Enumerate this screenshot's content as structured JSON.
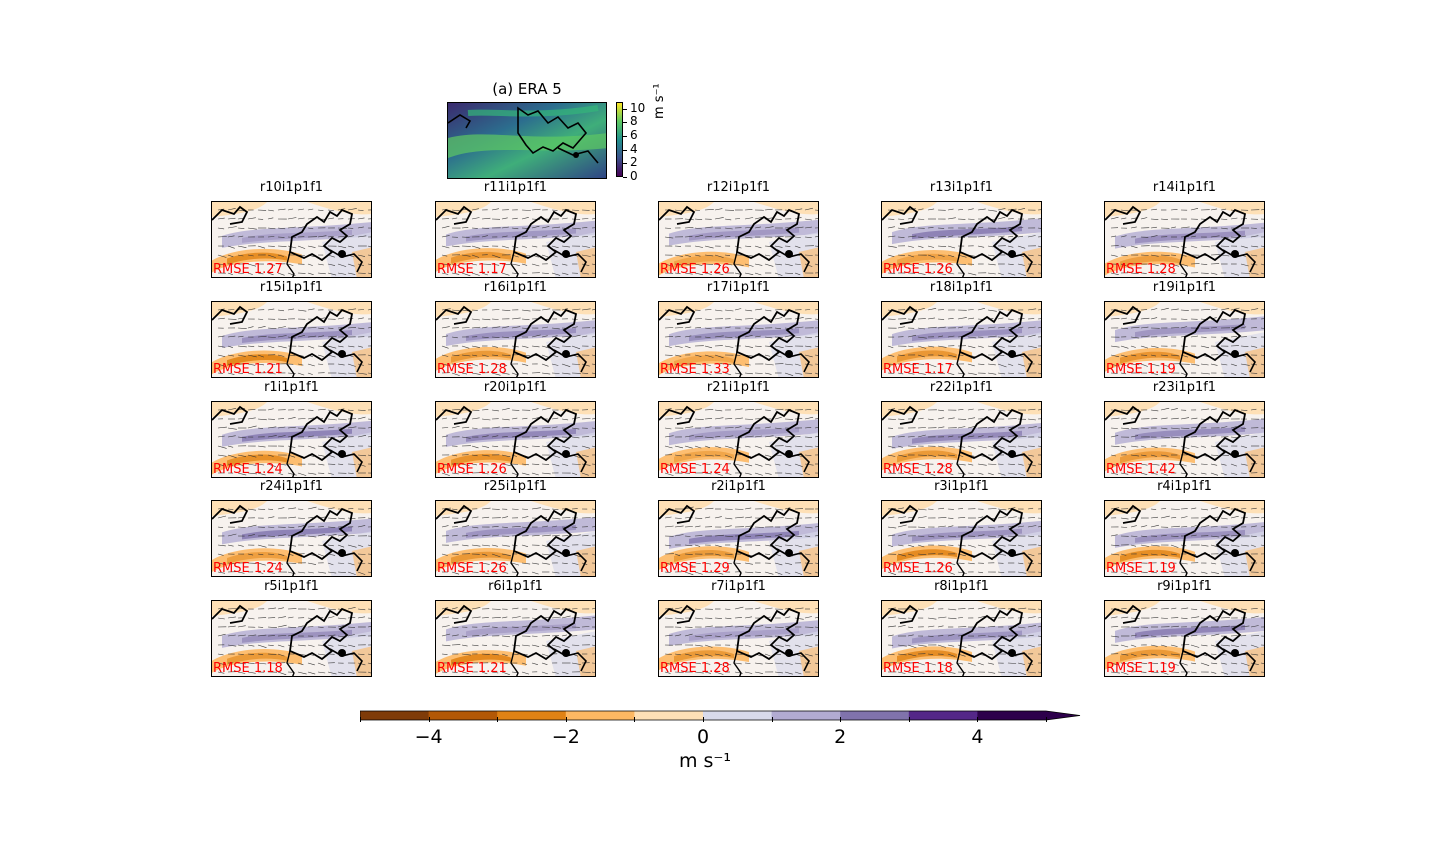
{
  "era": {
    "title": "(a) ERA 5",
    "cbar_ticks": [
      "10",
      "8",
      "6",
      "4",
      "2",
      "0"
    ],
    "unit": "m s⁻¹"
  },
  "chart_data": {
    "type": "heatmap",
    "panels": [
      {
        "name": "r10i1p1f1",
        "rmse": "RMSE 1.27"
      },
      {
        "name": "r11i1p1f1",
        "rmse": "RMSE 1.17"
      },
      {
        "name": "r12i1p1f1",
        "rmse": "RMSE 1.26"
      },
      {
        "name": "r13i1p1f1",
        "rmse": "RMSE 1.26"
      },
      {
        "name": "r14i1p1f1",
        "rmse": "RMSE 1.28"
      },
      {
        "name": "r15i1p1f1",
        "rmse": "RMSE 1.21"
      },
      {
        "name": "r16i1p1f1",
        "rmse": "RMSE 1.28"
      },
      {
        "name": "r17i1p1f1",
        "rmse": "RMSE 1.33"
      },
      {
        "name": "r18i1p1f1",
        "rmse": "RMSE 1.17"
      },
      {
        "name": "r19i1p1f1",
        "rmse": "RMSE 1.19"
      },
      {
        "name": "r1i1p1f1",
        "rmse": "RMSE 1.24"
      },
      {
        "name": "r20i1p1f1",
        "rmse": "RMSE 1.26"
      },
      {
        "name": "r21i1p1f1",
        "rmse": "RMSE 1.24"
      },
      {
        "name": "r22i1p1f1",
        "rmse": "RMSE 1.28"
      },
      {
        "name": "r23i1p1f1",
        "rmse": "RMSE 1.42"
      },
      {
        "name": "r24i1p1f1",
        "rmse": "RMSE 1.24"
      },
      {
        "name": "r25i1p1f1",
        "rmse": "RMSE 1.26"
      },
      {
        "name": "r2i1p1f1",
        "rmse": "RMSE 1.29"
      },
      {
        "name": "r3i1p1f1",
        "rmse": "RMSE 1.26"
      },
      {
        "name": "r4i1p1f1",
        "rmse": "RMSE 1.19"
      },
      {
        "name": "r5i1p1f1",
        "rmse": "RMSE 1.18"
      },
      {
        "name": "r6i1p1f1",
        "rmse": "RMSE 1.21"
      },
      {
        "name": "r7i1p1f1",
        "rmse": "RMSE 1.28"
      },
      {
        "name": "r8i1p1f1",
        "rmse": "RMSE 1.18"
      },
      {
        "name": "r9i1p1f1",
        "rmse": "RMSE 1.19"
      }
    ],
    "colorbar": {
      "range": [
        -5,
        5
      ],
      "levels": [
        -5,
        -4,
        -3,
        -2,
        -1,
        0,
        1,
        2,
        3,
        4,
        5
      ],
      "colors": [
        "#7f3b08",
        "#b35806",
        "#e08214",
        "#fdb863",
        "#fee0b6",
        "#d8daeb",
        "#b2abd2",
        "#8073ac",
        "#542788",
        "#2d004b"
      ],
      "extend": "max",
      "tick_values": [
        -4,
        -2,
        0,
        2,
        4
      ],
      "tick_labels": [
        "−4",
        "−2",
        "0",
        "2",
        "4"
      ],
      "label": "m s⁻¹"
    }
  }
}
